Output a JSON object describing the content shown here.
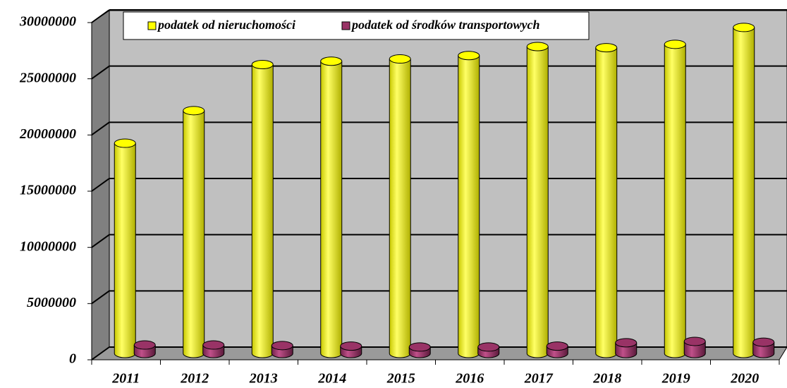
{
  "chart_data": {
    "type": "bar",
    "style": "3d-cylinder",
    "categories": [
      "2011",
      "2012",
      "2013",
      "2014",
      "2015",
      "2016",
      "2017",
      "2018",
      "2019",
      "2020"
    ],
    "series": [
      {
        "name": "podatek od nieruchomości",
        "color": "#ffff00",
        "values": [
          18700000,
          21600000,
          25700000,
          26000000,
          26200000,
          26500000,
          27300000,
          27200000,
          27500000,
          29000000
        ]
      },
      {
        "name": "podatek od środków transportowych",
        "color": "#993366",
        "values": [
          750000,
          750000,
          700000,
          650000,
          570000,
          570000,
          650000,
          950000,
          1070000,
          1000000
        ]
      }
    ],
    "ylim": [
      0,
      30000000
    ],
    "yticks": [
      0,
      5000000,
      10000000,
      15000000,
      20000000,
      25000000,
      30000000
    ],
    "grid": true,
    "legend": "top"
  }
}
